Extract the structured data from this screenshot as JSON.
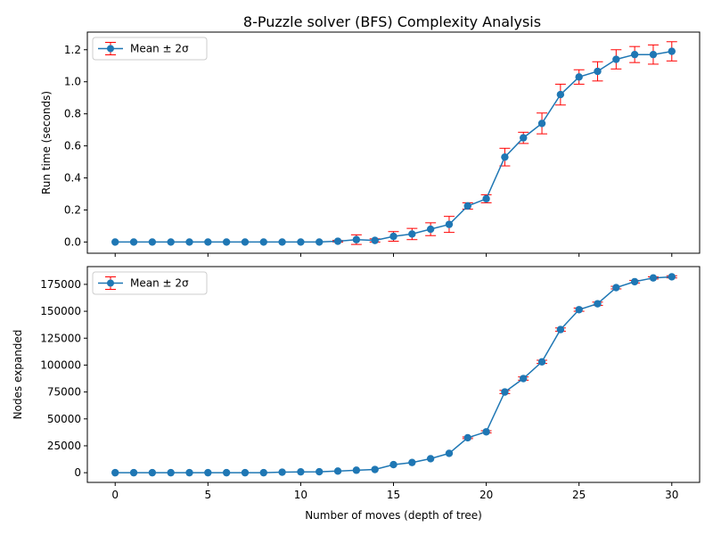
{
  "chart_data": [
    {
      "type": "line",
      "title": "8-Puzzle solver (BFS) Complexity Analysis",
      "xlabel": "",
      "ylabel": "Run time (seconds)",
      "xlim": [
        -1.5,
        31.5
      ],
      "ylim": [
        -0.07,
        1.31
      ],
      "xticks": [
        0,
        5,
        10,
        15,
        20,
        25,
        30
      ],
      "xtick_labels": [
        "",
        "",
        "",
        "",
        "",
        "",
        ""
      ],
      "yticks": [
        0.0,
        0.2,
        0.4,
        0.6,
        0.8,
        1.0,
        1.2
      ],
      "ytick_labels": [
        "0.0",
        "0.2",
        "0.4",
        "0.6",
        "0.8",
        "1.0",
        "1.2"
      ],
      "grid": false,
      "legend_position": "upper-left",
      "series": [
        {
          "name": "Mean ± 2σ",
          "x": [
            0,
            1,
            2,
            3,
            4,
            5,
            6,
            7,
            8,
            9,
            10,
            11,
            12,
            13,
            14,
            15,
            16,
            17,
            18,
            19,
            20,
            21,
            22,
            23,
            24,
            25,
            26,
            27,
            28,
            29,
            30
          ],
          "y": [
            0,
            0,
            0,
            0,
            0,
            0,
            0,
            0,
            0,
            0,
            0,
            0,
            0.005,
            0.015,
            0.01,
            0.035,
            0.05,
            0.08,
            0.11,
            0.225,
            0.27,
            0.53,
            0.65,
            0.74,
            0.92,
            1.03,
            1.065,
            1.14,
            1.17,
            1.17,
            1.19
          ],
          "err": [
            0,
            0,
            0,
            0,
            0,
            0,
            0,
            0,
            0,
            0,
            0,
            0,
            0.005,
            0.03,
            0.01,
            0.03,
            0.035,
            0.04,
            0.05,
            0.02,
            0.025,
            0.055,
            0.035,
            0.065,
            0.065,
            0.045,
            0.06,
            0.06,
            0.05,
            0.06,
            0.06
          ],
          "color": "#1f77b4",
          "err_color": "#ff0000"
        }
      ]
    },
    {
      "type": "line",
      "title": "",
      "xlabel": "Number of moves (depth of tree)",
      "ylabel": "Nodes expanded",
      "xlim": [
        -1.5,
        31.5
      ],
      "ylim": [
        -9000,
        191500
      ],
      "xticks": [
        0,
        5,
        10,
        15,
        20,
        25,
        30
      ],
      "xtick_labels": [
        "0",
        "5",
        "10",
        "15",
        "20",
        "25",
        "30"
      ],
      "yticks": [
        0,
        25000,
        50000,
        75000,
        100000,
        125000,
        150000,
        175000
      ],
      "ytick_labels": [
        "0",
        "25000",
        "50000",
        "75000",
        "100000",
        "125000",
        "150000",
        "175000"
      ],
      "grid": false,
      "legend_position": "upper-left",
      "series": [
        {
          "name": "Mean ± 2σ",
          "x": [
            0,
            1,
            2,
            3,
            4,
            5,
            6,
            7,
            8,
            9,
            10,
            11,
            12,
            13,
            14,
            15,
            16,
            17,
            18,
            19,
            20,
            21,
            22,
            23,
            24,
            25,
            26,
            27,
            28,
            29,
            30
          ],
          "y": [
            0,
            0,
            0,
            0,
            0,
            0,
            0,
            0,
            0,
            500,
            800,
            900,
            1500,
            2300,
            3000,
            7500,
            9500,
            13000,
            18000,
            32500,
            38000,
            75000,
            87500,
            103000,
            133000,
            151500,
            157000,
            172000,
            177500,
            181000,
            182000
          ],
          "err": [
            0,
            0,
            0,
            0,
            0,
            0,
            0,
            0,
            0,
            0,
            0,
            0,
            0,
            0,
            0,
            0,
            0,
            0,
            0,
            800,
            1000,
            1500,
            1500,
            1500,
            1500,
            1500,
            1500,
            1200,
            1200,
            1000,
            1000
          ],
          "color": "#1f77b4",
          "err_color": "#ff0000"
        }
      ]
    }
  ]
}
